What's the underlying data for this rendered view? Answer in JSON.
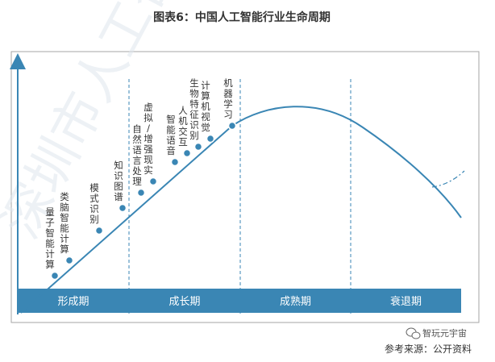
{
  "chart_data": {
    "type": "line",
    "title": "图表6：中国人工智能行业生命周期",
    "phases": [
      "形成期",
      "成长期",
      "成熟期",
      "衰退期"
    ],
    "technologies": [
      {
        "name": "量子智能计算",
        "stage": "形成期"
      },
      {
        "name": "类脑智能计算",
        "stage": "形成期"
      },
      {
        "name": "模式识别",
        "stage": "形成期"
      },
      {
        "name": "知识图谱",
        "stage": "形成期"
      },
      {
        "name": "自然语言处理",
        "stage": "成长期"
      },
      {
        "name": "虚拟/增强现实",
        "stage": "成长期"
      },
      {
        "name": "智能语音",
        "stage": "成长期"
      },
      {
        "name": "人机交互",
        "stage": "成长期"
      },
      {
        "name": "生物特征识别",
        "stage": "成长期"
      },
      {
        "name": "计算机视觉",
        "stage": "成长期"
      },
      {
        "name": "机器学习",
        "stage": "成长期"
      }
    ],
    "source": "参考来源：公开资料",
    "watermark": "智玩元宇宙",
    "background_watermark": "深圳市人工智能"
  }
}
